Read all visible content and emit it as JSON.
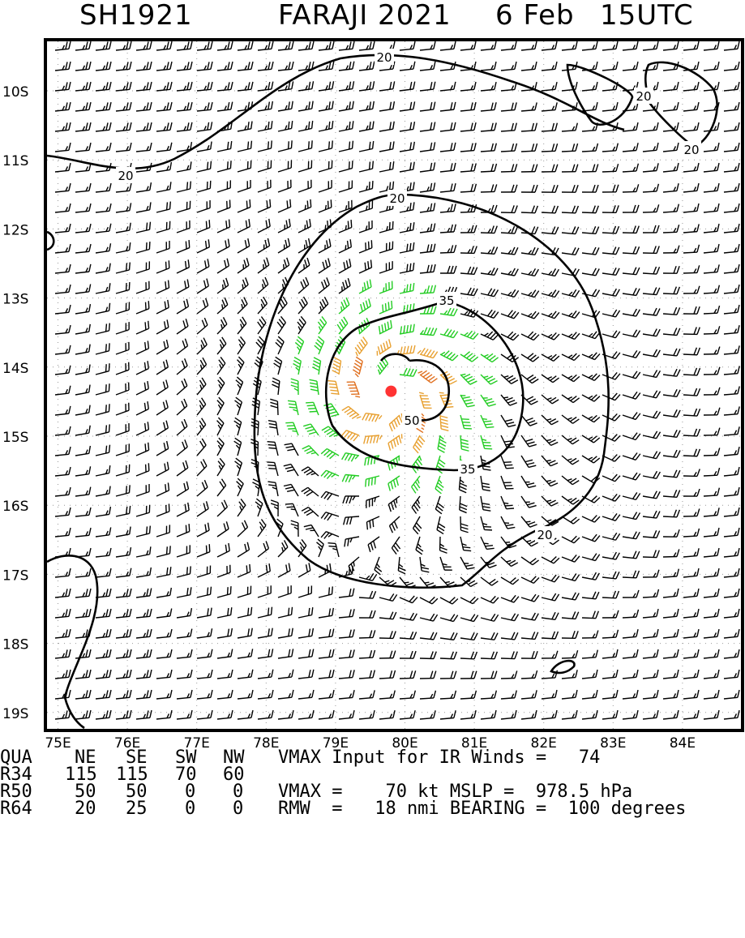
{
  "header": {
    "storm_id": "SH1921",
    "storm_name": "FARAJI 2021",
    "date": "6 Feb",
    "time": "15UTC"
  },
  "map": {
    "lat_labels": [
      "10S",
      "11S",
      "12S",
      "13S",
      "14S",
      "15S",
      "16S",
      "17S",
      "18S",
      "19S"
    ],
    "lon_labels": [
      "75E",
      "76E",
      "77E",
      "78E",
      "79E",
      "80E",
      "81E",
      "82E",
      "83E",
      "84E"
    ],
    "contour_labels": [
      "20",
      "20",
      "20",
      "20",
      "20",
      "20",
      "35",
      "35",
      "50"
    ],
    "colors": {
      "weak_barb": "#000000",
      "r34_barb": "#22cc22",
      "r50_barb": "#e8a030",
      "r64_barb": "#e07020",
      "center": "#ff3333",
      "grid": "#999999"
    },
    "center": {
      "lon": 79.8,
      "lat": -14.35
    }
  },
  "stats": {
    "header_row": [
      "QUA",
      "NE",
      "SE",
      "SW",
      "NW"
    ],
    "rows": [
      {
        "label": "R34",
        "values": [
          "115",
          "115",
          "70",
          "60"
        ]
      },
      {
        "label": "R50",
        "values": [
          "50",
          "50",
          "0",
          "0"
        ]
      },
      {
        "label": "R64",
        "values": [
          "20",
          "25",
          "0",
          "0"
        ]
      }
    ],
    "vmax_input_line": "VMAX Input for IR Winds =   74",
    "vmax_line": "VMAX =    70 kt MSLP =  978.5 hPa",
    "rmw_line": "RMW  =   18 nmi BEARING =  100 degrees"
  }
}
